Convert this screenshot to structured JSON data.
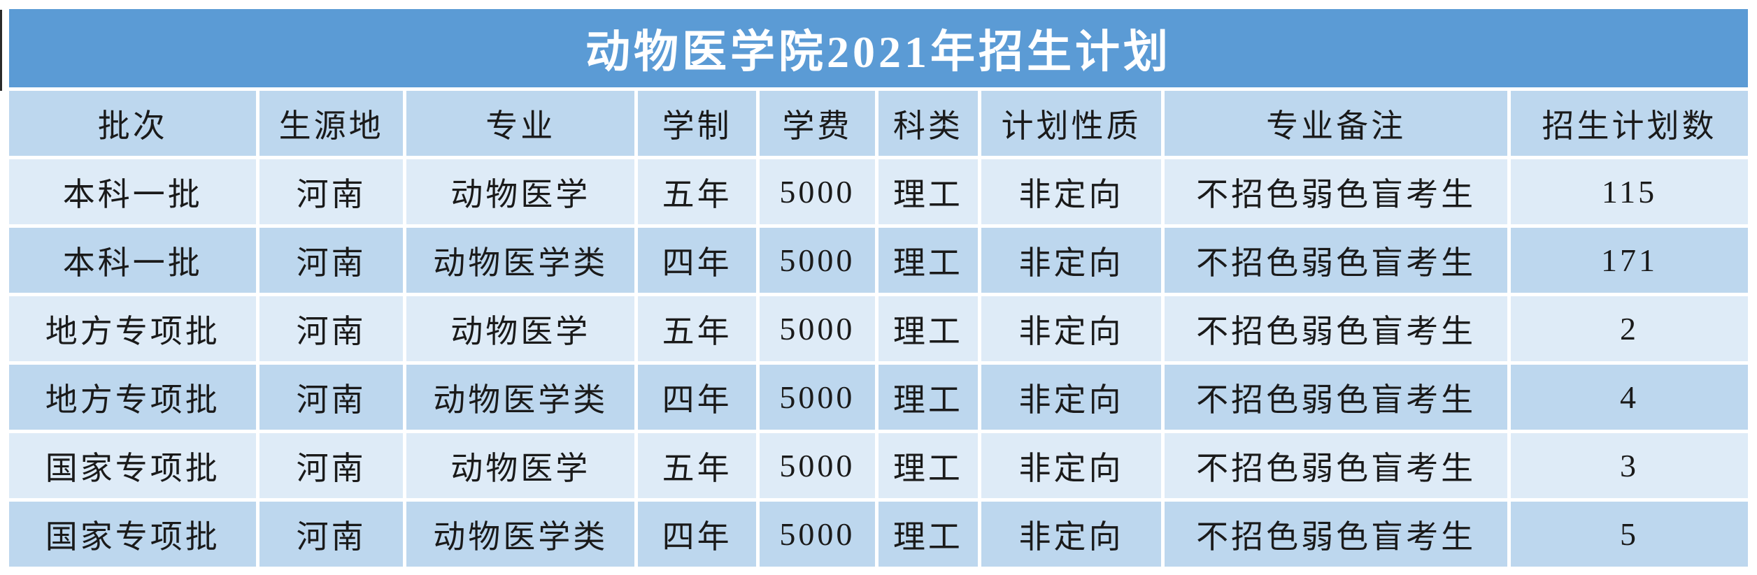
{
  "title": "动物医学院2021年招生计划",
  "chart_data": {
    "type": "table",
    "title": "动物医学院2021年招生计划",
    "columns": [
      "批次",
      "生源地",
      "专业",
      "学制",
      "学费",
      "科类",
      "计划性质",
      "专业备注",
      "招生计划数"
    ],
    "rows": [
      [
        "本科一批",
        "河南",
        "动物医学",
        "五年",
        "5000",
        "理工",
        "非定向",
        "不招色弱色盲考生",
        "115"
      ],
      [
        "本科一批",
        "河南",
        "动物医学类",
        "四年",
        "5000",
        "理工",
        "非定向",
        "不招色弱色盲考生",
        "171"
      ],
      [
        "地方专项批",
        "河南",
        "动物医学",
        "五年",
        "5000",
        "理工",
        "非定向",
        "不招色弱色盲考生",
        "2"
      ],
      [
        "地方专项批",
        "河南",
        "动物医学类",
        "四年",
        "5000",
        "理工",
        "非定向",
        "不招色弱色盲考生",
        "4"
      ],
      [
        "国家专项批",
        "河南",
        "动物医学",
        "五年",
        "5000",
        "理工",
        "非定向",
        "不招色弱色盲考生",
        "3"
      ],
      [
        "国家专项批",
        "河南",
        "动物医学类",
        "四年",
        "5000",
        "理工",
        "非定向",
        "不招色弱色盲考生",
        "5"
      ]
    ]
  },
  "colors": {
    "banner": "#5B9BD5",
    "header_row": "#BDD7EE",
    "row_light": "#DEEBF7",
    "row_dark": "#BDD7EE",
    "title_text": "#FFFFFF",
    "text": "#1A1A1A"
  }
}
